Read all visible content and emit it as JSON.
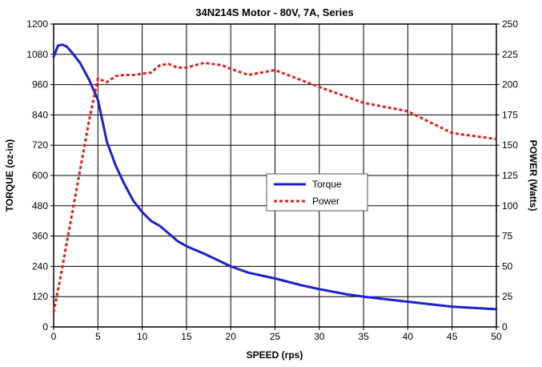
{
  "chart_data": {
    "type": "line",
    "title": "34N214S Motor - 80V, 7A, Series",
    "xlabel": "SPEED (rps)",
    "ylabel": "TORQUE (oz-in)",
    "y2label": "POWER (Watts)",
    "xlim": [
      0,
      50
    ],
    "ylim": [
      0,
      1200
    ],
    "y2lim": [
      0,
      250
    ],
    "x_ticks": [
      "0",
      "5",
      "10",
      "15",
      "20",
      "25",
      "30",
      "35",
      "40",
      "45",
      "50"
    ],
    "y_ticks": [
      "0",
      "120",
      "240",
      "360",
      "480",
      "600",
      "720",
      "840",
      "960",
      "1080",
      "1200"
    ],
    "y2_ticks": [
      "0",
      "25",
      "50",
      "75",
      "100",
      "125",
      "150",
      "175",
      "200",
      "225",
      "250"
    ],
    "grid": true,
    "legend_position": "center-right",
    "series": [
      {
        "name": "Torque",
        "axis": "left",
        "color": "#1f1fd0",
        "style": "solid",
        "x": [
          0,
          0.5,
          1,
          1.5,
          2,
          3,
          4,
          5,
          6,
          7,
          8,
          9,
          10,
          11,
          12,
          13,
          14,
          15,
          17,
          20,
          22,
          25,
          28,
          30,
          33,
          35,
          40,
          45,
          50
        ],
        "y": [
          1070,
          1115,
          1118,
          1110,
          1090,
          1045,
          980,
          900,
          735,
          640,
          565,
          500,
          455,
          420,
          400,
          370,
          340,
          320,
          290,
          240,
          215,
          192,
          165,
          150,
          130,
          120,
          100,
          80,
          70
        ]
      },
      {
        "name": "Power",
        "axis": "right",
        "color": "#e02020",
        "style": "dashed",
        "x": [
          0,
          1,
          2,
          3,
          4,
          5,
          6,
          7,
          8,
          9,
          10,
          11,
          12,
          13,
          14,
          15,
          16,
          17,
          18,
          19,
          20,
          22,
          25,
          30,
          35,
          40,
          45,
          50
        ],
        "y": [
          12,
          50,
          90,
          130,
          170,
          205,
          202,
          207,
          208,
          208,
          209,
          210,
          216,
          217,
          214,
          214,
          216,
          218,
          217,
          216,
          213,
          208,
          212,
          198,
          185,
          178,
          160,
          155
        ]
      }
    ]
  }
}
